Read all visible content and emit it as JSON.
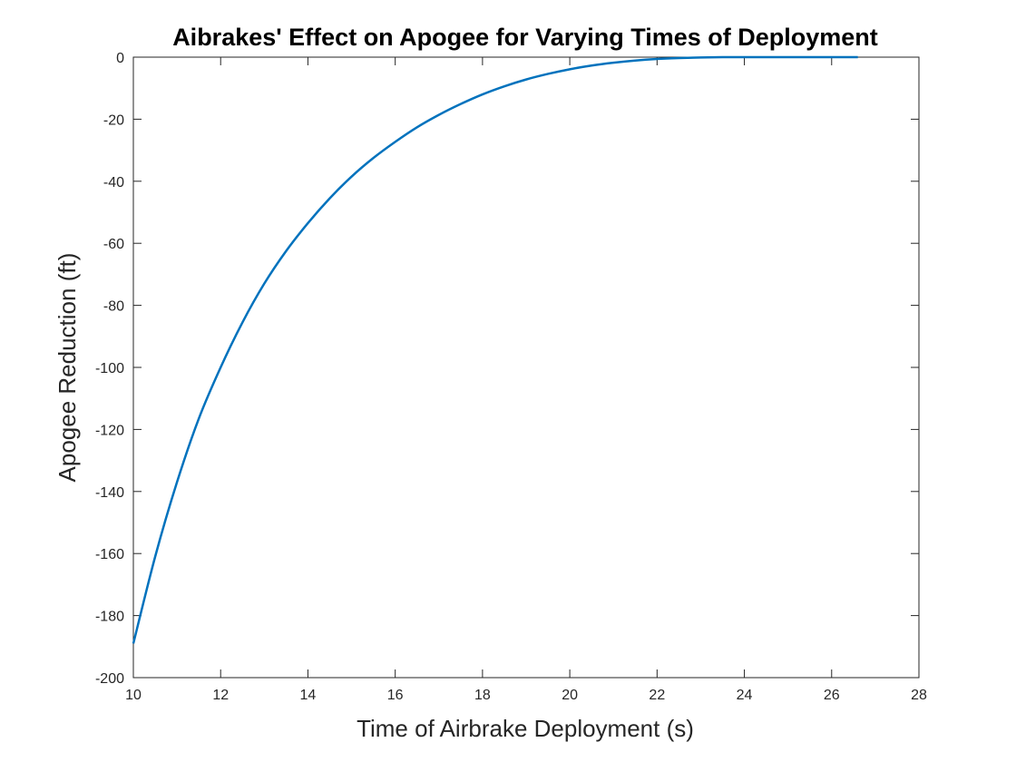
{
  "chart_data": {
    "type": "line",
    "title": "Aibrakes' Effect on Apogee for Varying Times of Deployment",
    "xlabel": "Time of Airbrake Deployment (s)",
    "ylabel": "Apogee Reduction (ft)",
    "xlim": [
      10,
      28
    ],
    "ylim": [
      -200,
      0
    ],
    "xticks": [
      10,
      12,
      14,
      16,
      18,
      20,
      22,
      24,
      26,
      28
    ],
    "yticks": [
      0,
      -20,
      -40,
      -60,
      -80,
      -100,
      -120,
      -140,
      -160,
      -180,
      -200
    ],
    "grid": false,
    "legend": "none",
    "colors": {
      "line": "#0072BD",
      "axes": "#262626",
      "background": "#ffffff"
    },
    "series": [
      {
        "x": [
          10,
          10.5,
          11,
          11.5,
          12,
          12.5,
          13,
          13.5,
          14,
          14.5,
          15,
          15.5,
          16,
          16.5,
          17,
          17.5,
          18,
          18.5,
          19,
          19.5,
          20,
          20.5,
          21,
          21.5,
          22,
          22.5,
          23,
          23.5,
          24,
          24.5,
          25,
          25.5,
          26,
          26.6
        ],
        "y": [
          -189,
          -161,
          -137,
          -116.5,
          -100,
          -85.5,
          -73,
          -62.5,
          -53.5,
          -45.5,
          -38.5,
          -32.5,
          -27.3,
          -22.6,
          -18.6,
          -15.1,
          -12,
          -9.4,
          -7.2,
          -5.4,
          -3.9,
          -2.7,
          -1.8,
          -1.1,
          -0.6,
          -0.3,
          -0.1,
          0,
          0,
          0,
          0,
          0,
          0,
          0
        ]
      }
    ]
  }
}
